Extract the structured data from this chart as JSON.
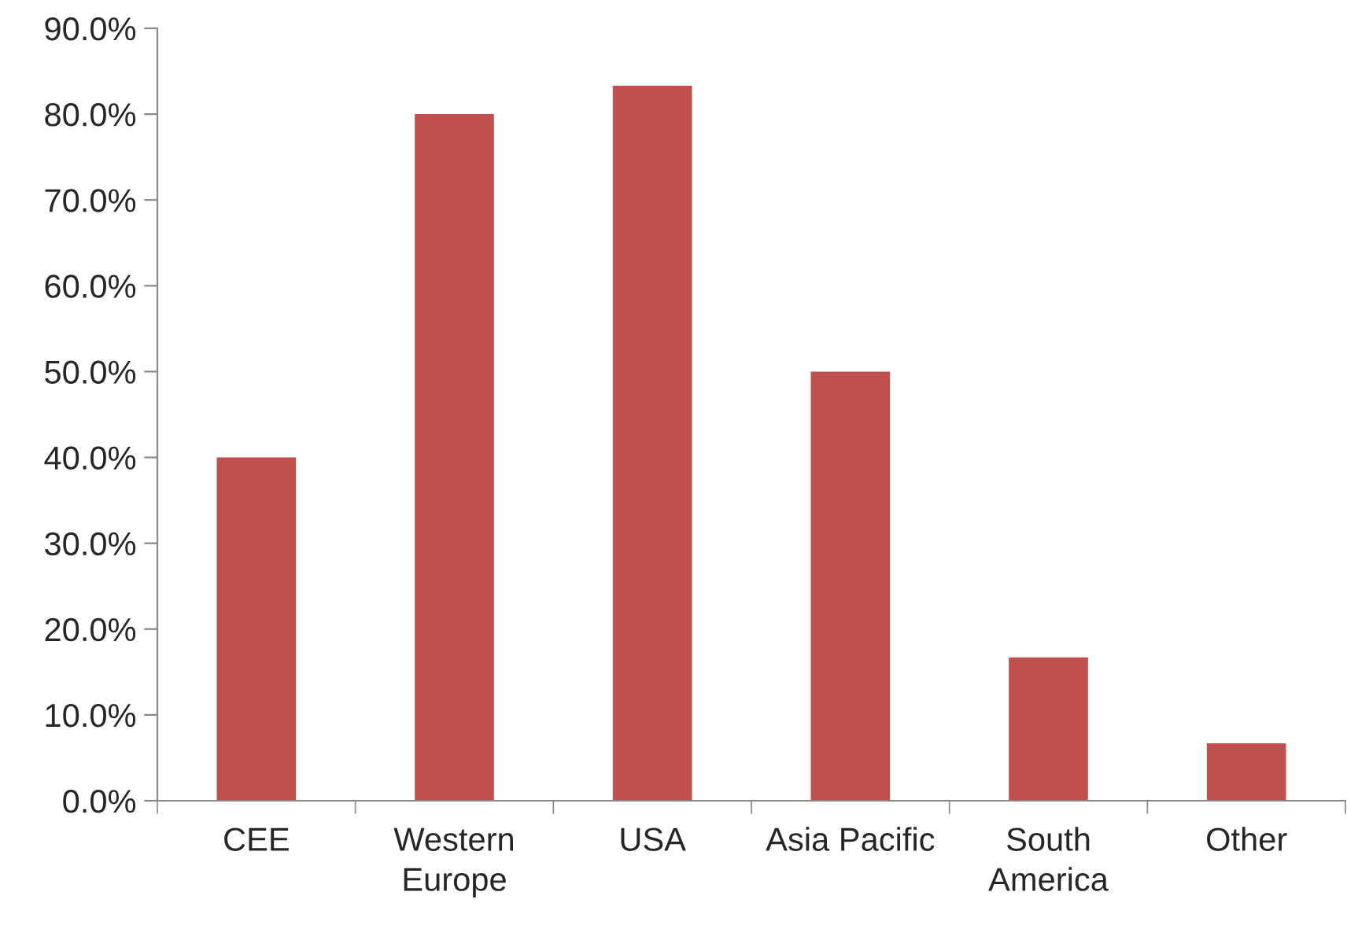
{
  "chart_data": {
    "type": "bar",
    "categories": [
      "CEE",
      "Western\nEurope",
      "USA",
      "Asia Pacific",
      "South\nAmerica",
      "Other"
    ],
    "values": [
      40.0,
      80.0,
      83.3,
      50.0,
      16.7,
      6.7
    ],
    "color": "#c0504d",
    "ylim": [
      0,
      90
    ],
    "yticks": [
      {
        "value": 0,
        "label": "0.0%"
      },
      {
        "value": 10,
        "label": "10.0%"
      },
      {
        "value": 20,
        "label": "20.0%"
      },
      {
        "value": 30,
        "label": "30.0%"
      },
      {
        "value": 40,
        "label": "40.0%"
      },
      {
        "value": 50,
        "label": "50.0%"
      },
      {
        "value": 60,
        "label": "60.0%"
      },
      {
        "value": 70,
        "label": "70.0%"
      },
      {
        "value": 80,
        "label": "80.0%"
      },
      {
        "value": 90,
        "label": "90.0%"
      }
    ],
    "grid": false,
    "legend": false
  }
}
